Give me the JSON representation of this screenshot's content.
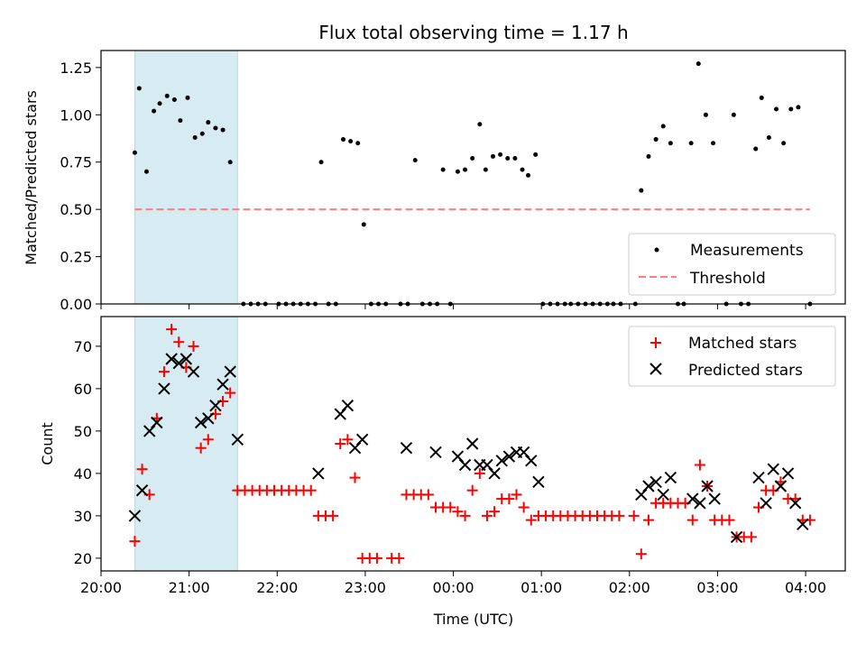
{
  "title": "Flux total observing time = 1.17 h",
  "colors": {
    "measurement": "#000000",
    "threshold": "#ff7f7f",
    "matched": "#ff0000",
    "predicted": "#000000",
    "span": "#add8e6"
  },
  "chart_data": [
    {
      "type": "scatter",
      "ylabel": "Matched/Predicted stars",
      "ylim": [
        0,
        1.34
      ],
      "yticks": [
        0,
        0.25,
        0.5,
        0.75,
        1.0,
        1.25
      ],
      "ytick_labels": [
        "0.00",
        "0.25",
        "0.50",
        "0.75",
        "1.00",
        "1.25"
      ],
      "xlim": [
        "20:00",
        "04:27"
      ],
      "highlight_span": [
        "20:23",
        "21:33"
      ],
      "legend": {
        "position": "lower-right",
        "entries": [
          "Measurements",
          "Threshold"
        ]
      },
      "threshold": {
        "name": "Threshold",
        "value": 0.5,
        "x": [
          "20:23",
          "04:03"
        ]
      },
      "series": [
        {
          "name": "Measurements",
          "points": [
            [
              "20:23",
              0.8
            ],
            [
              "20:26",
              1.14
            ],
            [
              "20:31",
              0.7
            ],
            [
              "20:36",
              1.02
            ],
            [
              "20:40",
              1.06
            ],
            [
              "20:45",
              1.1
            ],
            [
              "20:50",
              1.08
            ],
            [
              "20:54",
              0.97
            ],
            [
              "20:59",
              1.09
            ],
            [
              "21:04",
              0.88
            ],
            [
              "21:09",
              0.9
            ],
            [
              "21:13",
              0.96
            ],
            [
              "21:18",
              0.93
            ],
            [
              "21:23",
              0.92
            ],
            [
              "21:28",
              0.75
            ],
            [
              "21:37",
              0
            ],
            [
              "21:42",
              0
            ],
            [
              "21:47",
              0
            ],
            [
              "21:52",
              0
            ],
            [
              "22:01",
              0
            ],
            [
              "22:06",
              0
            ],
            [
              "22:11",
              0
            ],
            [
              "22:16",
              0
            ],
            [
              "22:21",
              0
            ],
            [
              "22:26",
              0
            ],
            [
              "22:30",
              0.75
            ],
            [
              "22:35",
              0
            ],
            [
              "22:40",
              0
            ],
            [
              "22:45",
              0.87
            ],
            [
              "22:50",
              0.86
            ],
            [
              "22:55",
              0.85
            ],
            [
              "22:59",
              0.42
            ],
            [
              "23:04",
              0
            ],
            [
              "23:09",
              0
            ],
            [
              "23:14",
              0
            ],
            [
              "23:24",
              0
            ],
            [
              "23:29",
              0
            ],
            [
              "23:34",
              0.76
            ],
            [
              "23:39",
              0
            ],
            [
              "23:44",
              0
            ],
            [
              "23:49",
              0
            ],
            [
              "23:53",
              0.71
            ],
            [
              "23:58",
              0
            ],
            [
              "00:03",
              0.7
            ],
            [
              "00:08",
              0.71
            ],
            [
              "00:13",
              0.77
            ],
            [
              "00:18",
              0.95
            ],
            [
              "00:22",
              0.71
            ],
            [
              "00:27",
              0.78
            ],
            [
              "00:32",
              0.79
            ],
            [
              "00:37",
              0.77
            ],
            [
              "00:42",
              0.77
            ],
            [
              "00:47",
              0.71
            ],
            [
              "00:51",
              0.68
            ],
            [
              "00:56",
              0.79
            ],
            [
              "01:01",
              0
            ],
            [
              "01:06",
              0
            ],
            [
              "01:11",
              0
            ],
            [
              "01:16",
              0
            ],
            [
              "01:20",
              0
            ],
            [
              "01:25",
              0
            ],
            [
              "01:30",
              0
            ],
            [
              "01:35",
              0
            ],
            [
              "01:40",
              0
            ],
            [
              "01:45",
              0
            ],
            [
              "01:49",
              0
            ],
            [
              "01:54",
              0
            ],
            [
              "02:04",
              0
            ],
            [
              "02:08",
              0.6
            ],
            [
              "02:13",
              0.78
            ],
            [
              "02:18",
              0.87
            ],
            [
              "02:23",
              0.94
            ],
            [
              "02:28",
              0.85
            ],
            [
              "02:33",
              0
            ],
            [
              "02:37",
              0
            ],
            [
              "02:42",
              0.85
            ],
            [
              "02:47",
              1.27
            ],
            [
              "02:52",
              1.0
            ],
            [
              "02:57",
              0.85
            ],
            [
              "03:06",
              0
            ],
            [
              "03:11",
              1.0
            ],
            [
              "03:16",
              0
            ],
            [
              "03:21",
              0
            ],
            [
              "03:26",
              0.82
            ],
            [
              "03:30",
              1.09
            ],
            [
              "03:35",
              0.88
            ],
            [
              "03:40",
              1.03
            ],
            [
              "03:45",
              0.85
            ],
            [
              "03:50",
              1.03
            ],
            [
              "03:55",
              1.04
            ],
            [
              "04:03",
              0
            ]
          ]
        }
      ]
    },
    {
      "type": "scatter",
      "xlabel": "Time (UTC)",
      "ylabel": "Count",
      "ylim": [
        17,
        77
      ],
      "yticks": [
        20,
        30,
        40,
        50,
        60,
        70
      ],
      "ytick_labels": [
        "20",
        "30",
        "40",
        "50",
        "60",
        "70"
      ],
      "xlim": [
        "20:00",
        "04:27"
      ],
      "xticks": [
        "20:00",
        "21:00",
        "22:00",
        "23:00",
        "00:00",
        "01:00",
        "02:00",
        "03:00",
        "04:00"
      ],
      "highlight_span": [
        "20:23",
        "21:33"
      ],
      "legend": {
        "position": "top-right",
        "entries": [
          "Matched stars",
          "Predicted stars"
        ]
      },
      "series": [
        {
          "name": "Matched stars",
          "marker": "plus",
          "points": [
            [
              "20:23",
              24
            ],
            [
              "20:28",
              41
            ],
            [
              "20:33",
              35
            ],
            [
              "20:38",
              53
            ],
            [
              "20:43",
              64
            ],
            [
              "20:48",
              74
            ],
            [
              "20:53",
              71
            ],
            [
              "20:58",
              65
            ],
            [
              "21:03",
              70
            ],
            [
              "21:08",
              46
            ],
            [
              "21:13",
              48
            ],
            [
              "21:18",
              54
            ],
            [
              "21:23",
              57
            ],
            [
              "21:28",
              59
            ],
            [
              "21:33",
              36
            ],
            [
              "21:38",
              36
            ],
            [
              "21:43",
              36
            ],
            [
              "21:48",
              36
            ],
            [
              "21:53",
              36
            ],
            [
              "21:58",
              36
            ],
            [
              "22:03",
              36
            ],
            [
              "22:08",
              36
            ],
            [
              "22:13",
              36
            ],
            [
              "22:18",
              36
            ],
            [
              "22:23",
              36
            ],
            [
              "22:28",
              30
            ],
            [
              "22:33",
              30
            ],
            [
              "22:38",
              30
            ],
            [
              "22:43",
              47
            ],
            [
              "22:48",
              48
            ],
            [
              "22:53",
              39
            ],
            [
              "22:58",
              20
            ],
            [
              "23:03",
              20
            ],
            [
              "23:08",
              20
            ],
            [
              "23:18",
              20
            ],
            [
              "23:23",
              20
            ],
            [
              "23:28",
              35
            ],
            [
              "23:33",
              35
            ],
            [
              "23:38",
              35
            ],
            [
              "23:43",
              35
            ],
            [
              "23:48",
              32
            ],
            [
              "23:53",
              32
            ],
            [
              "23:58",
              32
            ],
            [
              "00:03",
              31
            ],
            [
              "00:08",
              30
            ],
            [
              "00:13",
              36
            ],
            [
              "00:18",
              40
            ],
            [
              "00:23",
              30
            ],
            [
              "00:28",
              31
            ],
            [
              "00:33",
              34
            ],
            [
              "00:38",
              34
            ],
            [
              "00:43",
              35
            ],
            [
              "00:48",
              32
            ],
            [
              "00:53",
              29
            ],
            [
              "00:58",
              30
            ],
            [
              "01:03",
              30
            ],
            [
              "01:08",
              30
            ],
            [
              "01:13",
              30
            ],
            [
              "01:18",
              30
            ],
            [
              "01:23",
              30
            ],
            [
              "01:28",
              30
            ],
            [
              "01:33",
              30
            ],
            [
              "01:38",
              30
            ],
            [
              "01:43",
              30
            ],
            [
              "01:48",
              30
            ],
            [
              "01:53",
              30
            ],
            [
              "02:03",
              30
            ],
            [
              "02:08",
              21
            ],
            [
              "02:13",
              29
            ],
            [
              "02:18",
              33
            ],
            [
              "02:23",
              33
            ],
            [
              "02:28",
              33
            ],
            [
              "02:33",
              33
            ],
            [
              "02:38",
              33
            ],
            [
              "02:43",
              29
            ],
            [
              "02:48",
              42
            ],
            [
              "02:53",
              37
            ],
            [
              "02:58",
              29
            ],
            [
              "03:03",
              29
            ],
            [
              "03:08",
              29
            ],
            [
              "03:13",
              25
            ],
            [
              "03:18",
              25
            ],
            [
              "03:23",
              25
            ],
            [
              "03:28",
              32
            ],
            [
              "03:33",
              36
            ],
            [
              "03:38",
              36
            ],
            [
              "03:43",
              38
            ],
            [
              "03:48",
              34
            ],
            [
              "03:53",
              34
            ],
            [
              "03:58",
              29
            ],
            [
              "04:03",
              29
            ]
          ]
        },
        {
          "name": "Predicted stars",
          "marker": "x",
          "points": [
            [
              "20:23",
              30
            ],
            [
              "20:28",
              36
            ],
            [
              "20:33",
              50
            ],
            [
              "20:38",
              52
            ],
            [
              "20:43",
              60
            ],
            [
              "20:48",
              67
            ],
            [
              "20:53",
              66
            ],
            [
              "20:58",
              67
            ],
            [
              "21:03",
              64
            ],
            [
              "21:08",
              52
            ],
            [
              "21:13",
              53
            ],
            [
              "21:18",
              56
            ],
            [
              "21:23",
              61
            ],
            [
              "21:28",
              64
            ],
            [
              "21:33",
              48
            ],
            [
              "22:28",
              40
            ],
            [
              "22:43",
              54
            ],
            [
              "22:48",
              56
            ],
            [
              "22:53",
              46
            ],
            [
              "22:58",
              48
            ],
            [
              "23:28",
              46
            ],
            [
              "23:48",
              45
            ],
            [
              "00:03",
              44
            ],
            [
              "00:08",
              42
            ],
            [
              "00:13",
              47
            ],
            [
              "00:18",
              42
            ],
            [
              "00:23",
              42
            ],
            [
              "00:28",
              40
            ],
            [
              "00:33",
              43
            ],
            [
              "00:38",
              44
            ],
            [
              "00:43",
              45
            ],
            [
              "00:48",
              45
            ],
            [
              "00:53",
              43
            ],
            [
              "00:58",
              38
            ],
            [
              "02:08",
              35
            ],
            [
              "02:13",
              37
            ],
            [
              "02:18",
              38
            ],
            [
              "02:23",
              35
            ],
            [
              "02:28",
              39
            ],
            [
              "02:43",
              34
            ],
            [
              "02:48",
              33
            ],
            [
              "02:53",
              37
            ],
            [
              "02:58",
              34
            ],
            [
              "03:13",
              25
            ],
            [
              "03:28",
              39
            ],
            [
              "03:33",
              33
            ],
            [
              "03:38",
              41
            ],
            [
              "03:43",
              37
            ],
            [
              "03:48",
              40
            ],
            [
              "03:53",
              33
            ],
            [
              "03:58",
              28
            ]
          ]
        }
      ]
    }
  ]
}
